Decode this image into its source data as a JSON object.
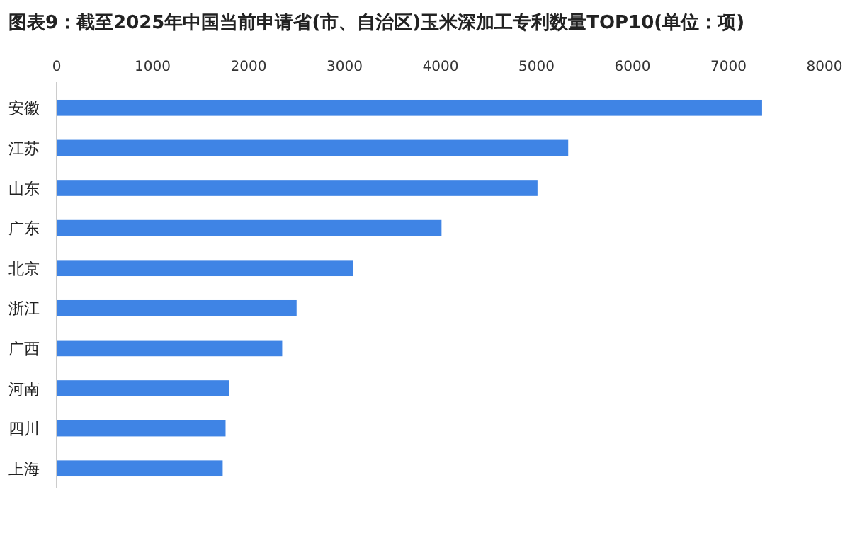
{
  "chart_data": {
    "type": "bar",
    "orientation": "horizontal",
    "title": "图表9：截至2025年中国当前申请省(市、自治区)玉米深加工专利数量TOP10(单位：项)",
    "categories": [
      "安徽",
      "江苏",
      "山东",
      "广东",
      "北京",
      "浙江",
      "广西",
      "河南",
      "四川",
      "上海"
    ],
    "values": [
      7350,
      5330,
      5010,
      4010,
      3090,
      2500,
      2350,
      1800,
      1760,
      1730
    ],
    "color": "#3f84e5",
    "xlim": [
      0,
      8000
    ],
    "xticks": [
      0,
      1000,
      2000,
      3000,
      4000,
      5000,
      6000,
      7000,
      8000
    ],
    "grid": false
  }
}
